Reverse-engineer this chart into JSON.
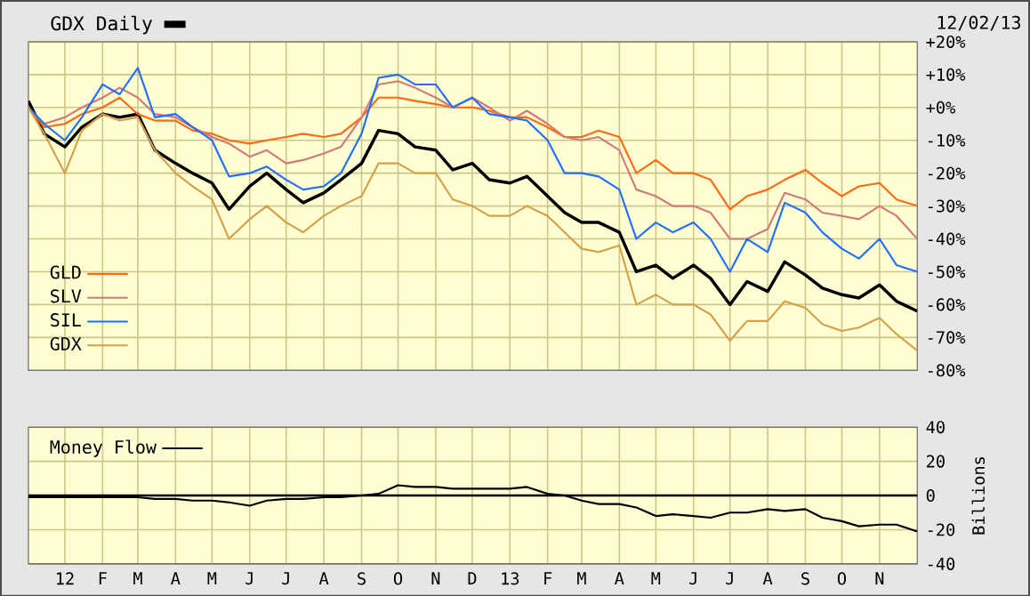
{
  "chart_data": [
    {
      "type": "line",
      "title": "GDX Daily",
      "annotations": [
        "12/02/13"
      ],
      "x": [
        "2011-12-02",
        "2011-12-15",
        "2012-01-01",
        "2012-01-15",
        "2012-02-01",
        "2012-02-15",
        "2012-03-01",
        "2012-03-15",
        "2012-04-01",
        "2012-04-15",
        "2012-05-01",
        "2012-05-15",
        "2012-06-01",
        "2012-06-15",
        "2012-07-01",
        "2012-07-15",
        "2012-08-01",
        "2012-08-15",
        "2012-09-01",
        "2012-09-15",
        "2012-10-01",
        "2012-10-15",
        "2012-11-01",
        "2012-11-15",
        "2012-12-01",
        "2012-12-15",
        "2013-01-01",
        "2013-01-15",
        "2013-02-01",
        "2013-02-15",
        "2013-03-01",
        "2013-03-15",
        "2013-04-01",
        "2013-04-15",
        "2013-05-01",
        "2013-05-15",
        "2013-06-01",
        "2013-06-15",
        "2013-07-01",
        "2013-07-15",
        "2013-08-01",
        "2013-08-15",
        "2013-09-01",
        "2013-09-15",
        "2013-10-01",
        "2013-10-15",
        "2013-11-01",
        "2013-11-15",
        "2013-12-02"
      ],
      "xlim": [
        "2011-12-02",
        "2013-12-02"
      ],
      "xticks": [
        {
          "value": "2012-01-01",
          "label": null
        },
        {
          "value": "2012-02-01",
          "label": null
        },
        {
          "value": "2012-03-01",
          "label": null
        },
        {
          "value": "2012-04-01",
          "label": null
        },
        {
          "value": "2012-05-01",
          "label": null
        },
        {
          "value": "2012-06-01",
          "label": null
        },
        {
          "value": "2012-07-01",
          "label": null
        },
        {
          "value": "2012-08-01",
          "label": null
        },
        {
          "value": "2012-09-01",
          "label": null
        },
        {
          "value": "2012-10-01",
          "label": null
        },
        {
          "value": "2012-11-01",
          "label": null
        },
        {
          "value": "2012-12-01",
          "label": null
        },
        {
          "value": "2013-01-01",
          "label": null
        },
        {
          "value": "2013-02-01",
          "label": null
        },
        {
          "value": "2013-03-01",
          "label": null
        },
        {
          "value": "2013-04-01",
          "label": null
        },
        {
          "value": "2013-05-01",
          "label": null
        },
        {
          "value": "2013-06-01",
          "label": null
        },
        {
          "value": "2013-07-01",
          "label": null
        },
        {
          "value": "2013-08-01",
          "label": null
        },
        {
          "value": "2013-09-01",
          "label": null
        },
        {
          "value": "2013-10-01",
          "label": null
        },
        {
          "value": "2013-11-01",
          "label": null
        }
      ],
      "ylim": [
        -80,
        20
      ],
      "yticks": [
        {
          "value": 20,
          "label": "+20%"
        },
        {
          "value": 10,
          "label": "+10%"
        },
        {
          "value": 0,
          "label": "+0%"
        },
        {
          "value": -10,
          "label": "-10%"
        },
        {
          "value": -20,
          "label": "-20%"
        },
        {
          "value": -30,
          "label": "-30%"
        },
        {
          "value": -40,
          "label": "-40%"
        },
        {
          "value": -50,
          "label": "-50%"
        },
        {
          "value": -60,
          "label": "-60%"
        },
        {
          "value": -70,
          "label": "-70%"
        },
        {
          "value": -80,
          "label": "-80%"
        }
      ],
      "series": [
        {
          "color": "#000000",
          "values": [
            2,
            -8,
            -12,
            -6,
            -2,
            -3,
            -2,
            -13,
            -17,
            -20,
            -23,
            -31,
            -24,
            -20,
            -25,
            -29,
            -26,
            -22,
            -17,
            -7,
            -8,
            -12,
            -13,
            -19,
            -17,
            -22,
            -23,
            -21,
            -27,
            -32,
            -35,
            -35,
            -38,
            -50,
            -48,
            -52,
            -48,
            -52,
            -60,
            -53,
            -56,
            -47,
            -51,
            -55,
            -57,
            -58,
            -54,
            -59,
            -62
          ]
        },
        {
          "name": "GLD",
          "color": "#ff6a10",
          "values": [
            0,
            -6,
            -5,
            -2,
            0,
            3,
            -2,
            -4,
            -4,
            -7,
            -8,
            -10,
            -11,
            -10,
            -9,
            -8,
            -9,
            -8,
            -3,
            3,
            3,
            2,
            1,
            0,
            0,
            -1,
            -3,
            -3,
            -6,
            -9,
            -9,
            -7,
            -9,
            -20,
            -16,
            -20,
            -20,
            -22,
            -31,
            -27,
            -25,
            -22,
            -19,
            -23,
            -27,
            -24,
            -23,
            -28,
            -30
          ]
        },
        {
          "name": "SLV",
          "color": "#d07a78",
          "values": [
            0,
            -5,
            -3,
            0,
            3,
            6,
            3,
            -2,
            -3,
            -6,
            -9,
            -11,
            -15,
            -13,
            -17,
            -16,
            -14,
            -12,
            -3,
            7,
            8,
            6,
            3,
            0,
            3,
            0,
            -4,
            -1,
            -5,
            -9,
            -10,
            -9,
            -13,
            -25,
            -27,
            -30,
            -30,
            -32,
            -40,
            -40,
            -37,
            -26,
            -28,
            -32,
            -33,
            -34,
            -30,
            -33,
            -40
          ]
        },
        {
          "name": "SIL",
          "color": "#1e6fff",
          "values": [
            0,
            -5,
            -10,
            -3,
            7,
            4,
            12,
            -3,
            -2,
            -6,
            -10,
            -21,
            -20,
            -18,
            -22,
            -25,
            -24,
            -20,
            -8,
            9,
            10,
            7,
            7,
            0,
            3,
            -2,
            -3,
            -4,
            -10,
            -20,
            -20,
            -21,
            -25,
            -40,
            -35,
            -38,
            -35,
            -40,
            -50,
            -40,
            -44,
            -29,
            -32,
            -38,
            -43,
            -46,
            -40,
            -48,
            -50
          ]
        },
        {
          "name": "GDX",
          "color": "#d4a048",
          "values": [
            0,
            -8,
            -20,
            -7,
            -2,
            -4,
            -3,
            -13,
            -20,
            -24,
            -28,
            -40,
            -34,
            -30,
            -35,
            -38,
            -33,
            -30,
            -27,
            -17,
            -17,
            -20,
            -20,
            -28,
            -30,
            -33,
            -33,
            -30,
            -33,
            -38,
            -43,
            -44,
            -42,
            -60,
            -57,
            -60,
            -60,
            -63,
            -71,
            -65,
            -65,
            -59,
            -61,
            -66,
            -68,
            -67,
            -64,
            -69,
            -74
          ]
        }
      ],
      "grid": true,
      "legend": "bottom left",
      "tick_labels": "y"
    },
    {
      "type": "line",
      "ylabel": "Billions",
      "x": [
        "2011-12-02",
        "2011-12-15",
        "2012-01-01",
        "2012-01-15",
        "2012-02-01",
        "2012-02-15",
        "2012-03-01",
        "2012-03-15",
        "2012-04-01",
        "2012-04-15",
        "2012-05-01",
        "2012-05-15",
        "2012-06-01",
        "2012-06-15",
        "2012-07-01",
        "2012-07-15",
        "2012-08-01",
        "2012-08-15",
        "2012-09-01",
        "2012-09-15",
        "2012-10-01",
        "2012-10-15",
        "2012-11-01",
        "2012-11-15",
        "2012-12-01",
        "2012-12-15",
        "2013-01-01",
        "2013-01-15",
        "2013-02-01",
        "2013-02-15",
        "2013-03-01",
        "2013-03-15",
        "2013-04-01",
        "2013-04-15",
        "2013-05-01",
        "2013-05-15",
        "2013-06-01",
        "2013-06-15",
        "2013-07-01",
        "2013-07-15",
        "2013-08-01",
        "2013-08-15",
        "2013-09-01",
        "2013-09-15",
        "2013-10-01",
        "2013-10-15",
        "2013-11-01",
        "2013-11-15",
        "2013-12-02"
      ],
      "xlim": [
        "2011-12-02",
        "2013-12-02"
      ],
      "xticks": [
        {
          "value": "2012-01-01",
          "label": "12"
        },
        {
          "value": "2012-02-01",
          "label": "F"
        },
        {
          "value": "2012-03-01",
          "label": "M"
        },
        {
          "value": "2012-04-01",
          "label": "A"
        },
        {
          "value": "2012-05-01",
          "label": "M"
        },
        {
          "value": "2012-06-01",
          "label": "J"
        },
        {
          "value": "2012-07-01",
          "label": "J"
        },
        {
          "value": "2012-08-01",
          "label": "A"
        },
        {
          "value": "2012-09-01",
          "label": "S"
        },
        {
          "value": "2012-10-01",
          "label": "O"
        },
        {
          "value": "2012-11-01",
          "label": "N"
        },
        {
          "value": "2012-12-01",
          "label": "D"
        },
        {
          "value": "2013-01-01",
          "label": "13"
        },
        {
          "value": "2013-02-01",
          "label": "F"
        },
        {
          "value": "2013-03-01",
          "label": "M"
        },
        {
          "value": "2013-04-01",
          "label": "A"
        },
        {
          "value": "2013-05-01",
          "label": "M"
        },
        {
          "value": "2013-06-01",
          "label": "J"
        },
        {
          "value": "2013-07-01",
          "label": "J"
        },
        {
          "value": "2013-08-01",
          "label": "A"
        },
        {
          "value": "2013-09-01",
          "label": "S"
        },
        {
          "value": "2013-10-01",
          "label": "O"
        },
        {
          "value": "2013-11-01",
          "label": "N"
        }
      ],
      "ylim": [
        -40,
        40
      ],
      "yticks": [
        40,
        20,
        0,
        -20,
        -40
      ],
      "series": [
        {
          "name": "Money Flow",
          "color": "#000000",
          "values": [
            -1,
            -1,
            -1,
            -1,
            -1,
            -1,
            -1,
            -2,
            -2,
            -3,
            -3,
            -4,
            -6,
            -3,
            -2,
            -2,
            -1,
            -1,
            0,
            1,
            6,
            5,
            5,
            4,
            4,
            4,
            4,
            5,
            1,
            0,
            -3,
            -5,
            -5,
            -7,
            -12,
            -11,
            -12,
            -13,
            -10,
            -10,
            -8,
            -9,
            -8,
            -13,
            -15,
            -18,
            -17,
            -17,
            -21
          ]
        }
      ],
      "ref_lines": [
        {
          "axis": "y",
          "value": 0,
          "color": "#000000"
        }
      ],
      "grid": true,
      "legend": "top left"
    }
  ]
}
